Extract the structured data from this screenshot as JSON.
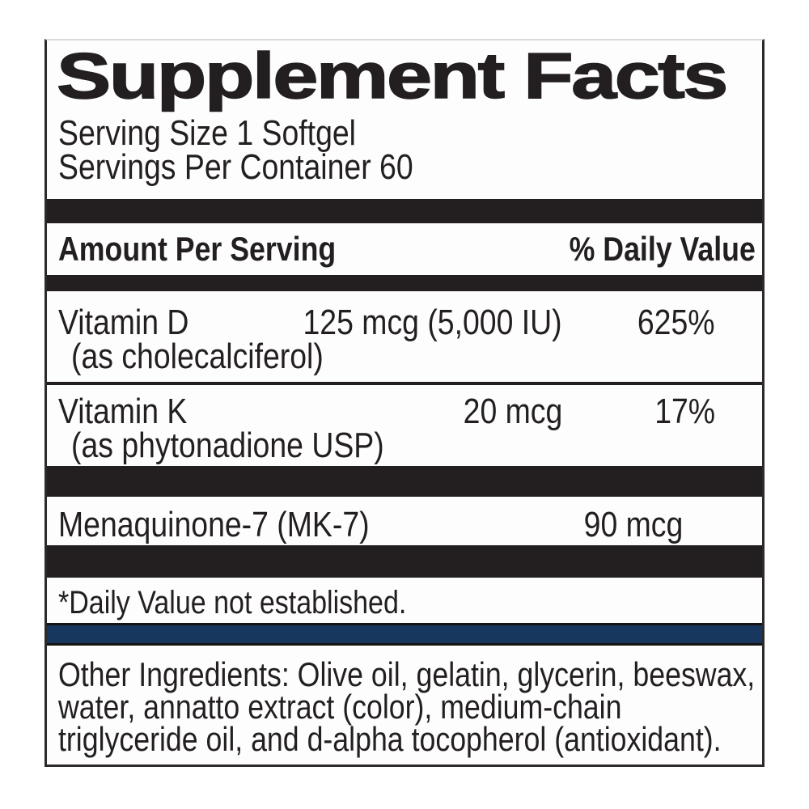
{
  "label": {
    "title": "Supplement Facts",
    "serving_size": "Serving Size 1 Softgel",
    "servings_per_container": "Servings Per Container 60",
    "table_header": {
      "amount": "Amount Per Serving",
      "daily_value": "% Daily Value"
    },
    "nutrients": [
      {
        "name": "Vitamin D",
        "source": "(as cholecalciferol)",
        "amount": "125 mcg (5,000 IU)",
        "daily_value": "625%"
      },
      {
        "name": "Vitamin K",
        "source": "(as phytonadione USP)",
        "amount": "20 mcg",
        "daily_value": "17%"
      },
      {
        "name": "Menaquinone-7 (MK-7)",
        "source": "",
        "amount": "90 mcg",
        "daily_value": "*"
      }
    ],
    "footnote": "*Daily Value not established.",
    "other_ingredients_lines": [
      "Other Ingredients: Olive oil, gelatin, glycerin, beeswax,",
      "water, annatto extract (color), medium-chain",
      "triglyceride oil, and d-alpha tocopherol (antioxidant)."
    ],
    "colors": {
      "text": "#231f20",
      "bar": "#231f20",
      "accent_navy": "#17375e"
    }
  }
}
